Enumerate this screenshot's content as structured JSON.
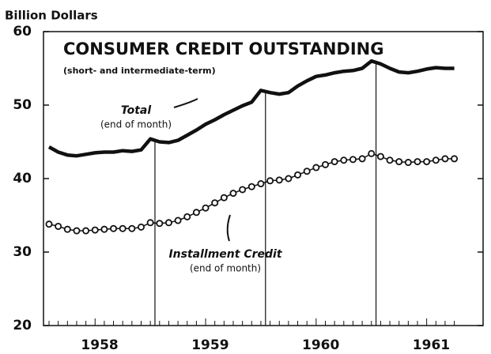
{
  "chart_data": {
    "type": "line",
    "title": "CONSUMER CREDIT OUTSTANDING",
    "subtitle": "(short- and intermediate-term)",
    "y_label": "Billion Dollars",
    "annotations": [
      "Total",
      "(end of month)",
      "Installment Credit",
      "(end of month)"
    ],
    "categories": [
      null,
      null,
      null,
      null,
      null,
      null,
      null,
      null,
      null,
      null,
      null,
      null,
      null,
      null,
      null,
      null,
      null,
      null,
      null,
      null,
      null,
      null,
      null,
      null,
      null,
      null,
      null,
      null,
      null,
      null,
      null,
      null,
      null,
      null,
      null,
      null,
      null,
      null,
      null,
      null,
      null,
      null,
      null,
      null,
      null
    ],
    "year_labels": [
      "1958",
      "1959",
      "1960",
      "1961"
    ],
    "series": [
      {
        "name": "Total",
        "color": "#111111",
        "values": [
          44.3,
          43.6,
          43.2,
          43.1,
          43.3,
          43.5,
          43.6,
          43.6,
          43.8,
          43.7,
          43.9,
          45.4,
          45.0,
          44.9,
          45.2,
          45.9,
          46.6,
          47.4,
          48.0,
          48.7,
          49.3,
          49.9,
          50.4,
          52.0,
          51.7,
          51.5,
          51.7,
          52.6,
          53.3,
          53.9,
          54.1,
          54.4,
          54.6,
          54.7,
          55.0,
          56.0,
          55.6,
          55.0,
          54.5,
          54.4,
          54.6,
          54.9,
          55.1,
          55.0,
          55.0
        ]
      },
      {
        "name": "Installment Credit",
        "color": "#111111",
        "values": [
          33.8,
          33.5,
          33.1,
          32.9,
          32.9,
          33.0,
          33.1,
          33.2,
          33.2,
          33.2,
          33.4,
          34.0,
          33.9,
          34.0,
          34.3,
          34.8,
          35.4,
          36.0,
          36.7,
          37.4,
          38.0,
          38.5,
          38.9,
          39.3,
          39.7,
          39.8,
          40.0,
          40.5,
          41.0,
          41.5,
          41.9,
          42.3,
          42.5,
          42.6,
          42.7,
          43.4,
          43.0,
          42.5,
          42.3,
          42.2,
          42.3,
          42.3,
          42.5,
          42.7,
          42.7
        ]
      }
    ],
    "ylim": [
      20,
      60
    ],
    "yticks": [
      20,
      30,
      40,
      50,
      60
    ],
    "grid": false
  }
}
